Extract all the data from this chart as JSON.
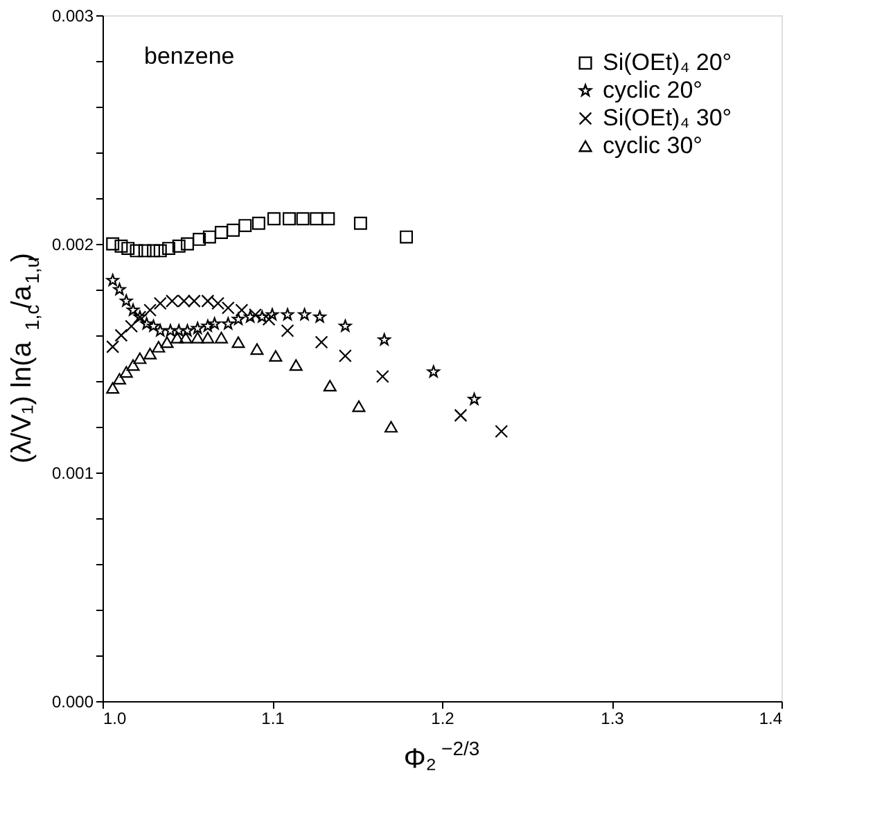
{
  "chart_data": {
    "type": "scatter",
    "xlabel": "Φ₂$^{−2/3}$",
    "ylabel": "(λ/V₁) ln(a$_{1,c}$/a$_{1,u}$)",
    "annotations": [
      "benzene"
    ],
    "xlim": [
      1.0,
      1.4
    ],
    "ylim": [
      0.0,
      0.003
    ],
    "xticks": [
      {
        "value": 1.0,
        "label": "1.0"
      },
      1.1,
      1.2,
      1.3,
      1.4
    ],
    "yticks": [
      {
        "value": 0.0,
        "label": "0.000"
      },
      {
        "value": 0.0002,
        "label": null
      },
      {
        "value": 0.0004,
        "label": null
      },
      {
        "value": 0.0006,
        "label": null
      },
      {
        "value": 0.0008,
        "label": null
      },
      {
        "value": 0.001,
        "label": "0.001"
      },
      {
        "value": 0.0012,
        "label": null
      },
      {
        "value": 0.0014,
        "label": null
      },
      {
        "value": 0.0016,
        "label": null
      },
      {
        "value": 0.0018,
        "label": null
      },
      {
        "value": 0.002,
        "label": "0.002"
      },
      {
        "value": 0.0022,
        "label": null
      },
      {
        "value": 0.0024,
        "label": null
      },
      {
        "value": 0.0026,
        "label": null
      },
      {
        "value": 0.0028,
        "label": null
      },
      {
        "value": 0.003,
        "label": "0.003"
      }
    ],
    "grid": false,
    "legend": "top right",
    "series": [
      {
        "name": "Si(OEt)₄   20°",
        "color": "#000000",
        "marker": "square",
        "x": [
          1.006,
          1.011,
          1.015,
          1.02,
          1.025,
          1.03,
          1.034,
          1.039,
          1.045,
          1.05,
          1.057,
          1.063,
          1.07,
          1.077,
          1.084,
          1.092,
          1.101,
          1.11,
          1.118,
          1.126,
          1.133,
          1.152,
          1.179
        ],
        "values": [
          0.002,
          0.00199,
          0.00198,
          0.00197,
          0.00197,
          0.00197,
          0.00197,
          0.00198,
          0.00199,
          0.002,
          0.00202,
          0.00203,
          0.00205,
          0.00206,
          0.00208,
          0.00209,
          0.00211,
          0.00211,
          0.00211,
          0.00211,
          0.00211,
          0.00209,
          0.00203
        ]
      },
      {
        "name": "cyclic   20°",
        "color": "#000000",
        "marker": "star",
        "x": [
          1.006,
          1.01,
          1.014,
          1.018,
          1.022,
          1.026,
          1.03,
          1.034,
          1.04,
          1.045,
          1.05,
          1.056,
          1.062,
          1.066,
          1.074,
          1.08,
          1.087,
          1.094,
          1.1,
          1.109,
          1.119,
          1.128,
          1.143,
          1.166,
          1.195,
          1.219
        ],
        "values": [
          0.00184,
          0.0018,
          0.00175,
          0.00171,
          0.00168,
          0.00165,
          0.00164,
          0.00162,
          0.00162,
          0.00162,
          0.00162,
          0.00163,
          0.00164,
          0.00165,
          0.00165,
          0.00167,
          0.00168,
          0.00168,
          0.00169,
          0.00169,
          0.00169,
          0.00168,
          0.00164,
          0.00158,
          0.00144,
          0.00132
        ]
      },
      {
        "name": "Si(OEt)₄   30°",
        "color": "#000000",
        "marker": "cross",
        "x": [
          1.006,
          1.011,
          1.017,
          1.022,
          1.028,
          1.034,
          1.041,
          1.048,
          1.054,
          1.062,
          1.068,
          1.074,
          1.082,
          1.09,
          1.098,
          1.109,
          1.129,
          1.143,
          1.165,
          1.211,
          1.235
        ],
        "values": [
          0.00155,
          0.0016,
          0.00164,
          0.00168,
          0.00171,
          0.00174,
          0.00175,
          0.00175,
          0.00175,
          0.00175,
          0.00174,
          0.00172,
          0.00171,
          0.00169,
          0.00167,
          0.00162,
          0.00157,
          0.00151,
          0.00142,
          0.00125,
          0.00118
        ]
      },
      {
        "name": "cyclic   30°",
        "color": "#000000",
        "marker": "triangle",
        "x": [
          1.006,
          1.01,
          1.014,
          1.018,
          1.022,
          1.028,
          1.033,
          1.038,
          1.044,
          1.049,
          1.056,
          1.062,
          1.07,
          1.08,
          1.091,
          1.102,
          1.114,
          1.134,
          1.151,
          1.17
        ],
        "values": [
          0.00137,
          0.00141,
          0.00144,
          0.00147,
          0.0015,
          0.00152,
          0.00155,
          0.00157,
          0.00159,
          0.00159,
          0.00159,
          0.00159,
          0.00159,
          0.00157,
          0.00154,
          0.00151,
          0.00147,
          0.00138,
          0.00129,
          0.0012
        ]
      }
    ]
  }
}
